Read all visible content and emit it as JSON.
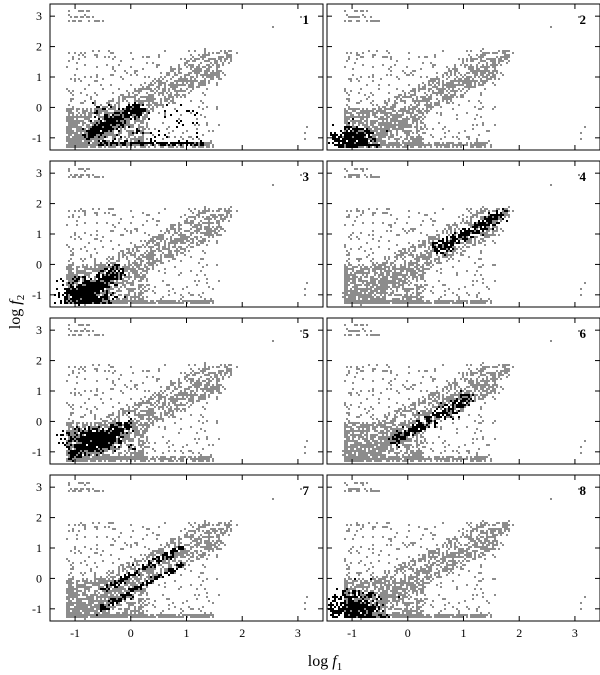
{
  "chart_data": {
    "type": "scatter",
    "layout": "4 rows x 2 columns of panels with shared axes",
    "xlabel": {
      "prefix": "log ",
      "var": "f",
      "sub": "1"
    },
    "ylabel": {
      "prefix": "log ",
      "var": "f",
      "sub": "2"
    },
    "xlim": [
      -1.45,
      3.45
    ],
    "ylim": [
      -1.4,
      3.4
    ],
    "xticks": [
      -1,
      0,
      1,
      2,
      3
    ],
    "yticks": [
      -1,
      0,
      1,
      2,
      3
    ],
    "xtick_labels": [
      "-1",
      "0",
      "1",
      "2",
      "3"
    ],
    "ytick_labels": [
      "-1",
      "0",
      "1",
      "2",
      "3"
    ],
    "grid": false,
    "colors": {
      "background_points": "#8c8c8c",
      "highlight_points": "#000000",
      "frame": "#000000"
    },
    "background": {
      "description": "same grey point cloud repeated in every panel",
      "diagonal_bands": [
        {
          "x": [
            -1.1,
            1.8
          ],
          "y_intercept": 0.0,
          "slope": 1.0,
          "spread": 0.12
        },
        {
          "x": [
            -0.9,
            1.6
          ],
          "y_intercept": -0.35,
          "slope": 1.0,
          "spread": 0.1
        },
        {
          "x": [
            -0.6,
            1.4
          ],
          "y_intercept": 0.45,
          "slope": 1.0,
          "spread": 0.08
        }
      ],
      "dense_cluster": {
        "x": [
          -1.15,
          0.3
        ],
        "y": [
          -1.25,
          0.0
        ]
      },
      "floor_row": {
        "y": -1.2,
        "x": [
          -1.15,
          1.5
        ]
      },
      "scatter_region": {
        "x": [
          -1.15,
          1.6
        ],
        "y": [
          -1.2,
          1.9
        ]
      },
      "top_left_points": {
        "x": [
          -1.15,
          -0.5
        ],
        "y": [
          2.9,
          3.2
        ]
      },
      "outliers": [
        [
          2.55,
          2.65
        ],
        [
          3.05,
          3.0
        ],
        [
          3.1,
          -1.0
        ],
        [
          3.15,
          -0.6
        ],
        [
          3.1,
          -0.8
        ]
      ]
    },
    "panels": [
      {
        "label": "1",
        "highlight": {
          "diagonal_band": {
            "x": [
              -0.8,
              0.2
            ],
            "offset": -0.1,
            "spread": 0.12
          },
          "floor_row": {
            "y": -1.15,
            "x": [
              -0.6,
              1.3
            ]
          },
          "scatter": {
            "x": [
              -0.7,
              1.2
            ],
            "y": [
              -1.1,
              0.2
            ]
          }
        }
      },
      {
        "label": "2",
        "highlight": {
          "cluster": {
            "center": [
              -1.0,
              -1.0
            ],
            "spread": [
              0.18,
              0.18
            ]
          }
        }
      },
      {
        "label": "3",
        "highlight": {
          "cluster": {
            "center": [
              -0.85,
              -0.95
            ],
            "spread": [
              0.22,
              0.22
            ]
          },
          "diagonal_band": {
            "x": [
              -1.0,
              -0.2
            ],
            "offset": 0.0,
            "spread": 0.15
          }
        }
      },
      {
        "label": "4",
        "highlight": {
          "diagonal_band": {
            "x": [
              0.5,
              1.7
            ],
            "offset": 0.0,
            "spread": 0.12
          }
        }
      },
      {
        "label": "5",
        "highlight": {
          "cluster": {
            "center": [
              -0.7,
              -0.6
            ],
            "spread": [
              0.25,
              0.2
            ]
          },
          "diagonal_band": {
            "x": [
              -1.1,
              0.0
            ],
            "offset": 0.0,
            "spread": 0.12
          }
        }
      },
      {
        "label": "6",
        "highlight": {
          "diagonal_band": {
            "x": [
              -0.3,
              1.1
            ],
            "offset": -0.3,
            "spread": 0.12
          }
        }
      },
      {
        "label": "7",
        "highlight": {
          "diagonal_bands": [
            {
              "x": [
                -0.6,
                0.9
              ],
              "offset": -0.4,
              "spread": 0.06
            },
            {
              "x": [
                -0.5,
                0.9
              ],
              "offset": 0.15,
              "spread": 0.06
            }
          ]
        }
      },
      {
        "label": "8",
        "highlight": {
          "cluster": {
            "center": [
              -1.0,
              -0.9
            ],
            "spread": [
              0.25,
              0.25
            ]
          }
        }
      }
    ]
  }
}
